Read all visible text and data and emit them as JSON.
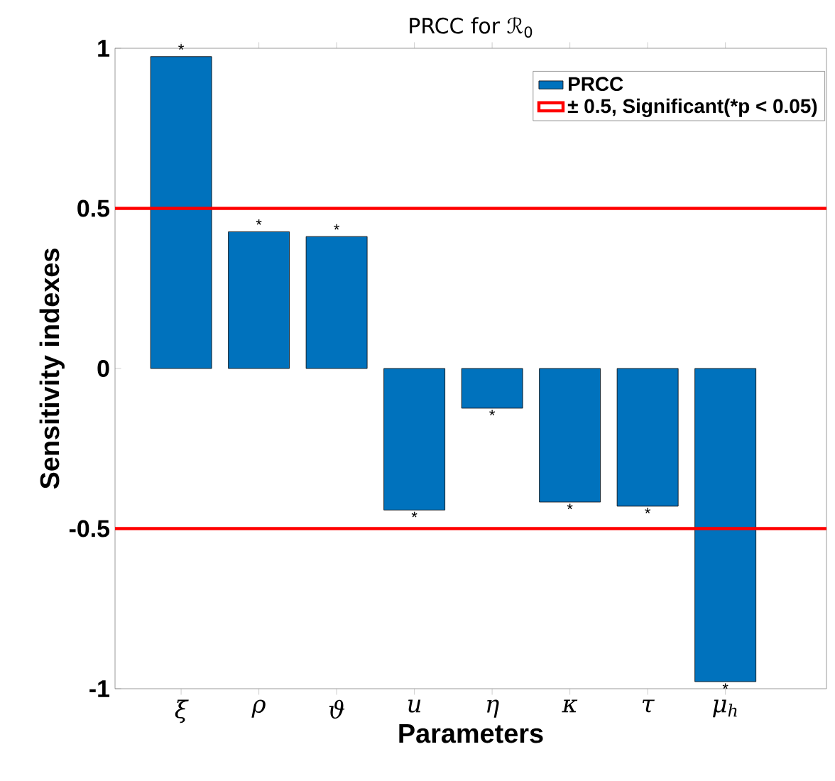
{
  "chart_data": {
    "type": "bar",
    "title": "PRCC for ℛ$_{0}$",
    "xlabel": "Parameters",
    "ylabel": "Sensitivity indexes",
    "categories": [
      "ξ",
      "ρ",
      "ϑ",
      "u",
      "η",
      "κ",
      "τ",
      "μ$_{h}$"
    ],
    "series": [
      {
        "name": "PRCC",
        "color": "#0072bd",
        "values": [
          0.974,
          0.427,
          0.412,
          -0.442,
          -0.124,
          -0.417,
          -0.43,
          -0.978
        ],
        "value_labels": [
          "*",
          "*",
          "*",
          "*",
          "*",
          "*",
          "*",
          "*"
        ]
      }
    ],
    "ylim": [
      -1,
      1
    ],
    "yticks": [
      -1,
      -0.5,
      0,
      0.5,
      1
    ],
    "ref_lines": [
      {
        "axis": "y",
        "value": 0.5,
        "label": "± 0.5, Significant(*p < 0.05)",
        "color": "#ff0000"
      },
      {
        "axis": "y",
        "value": -0.5,
        "color": "#ff0000"
      }
    ],
    "legend": "top right",
    "grid": false
  }
}
